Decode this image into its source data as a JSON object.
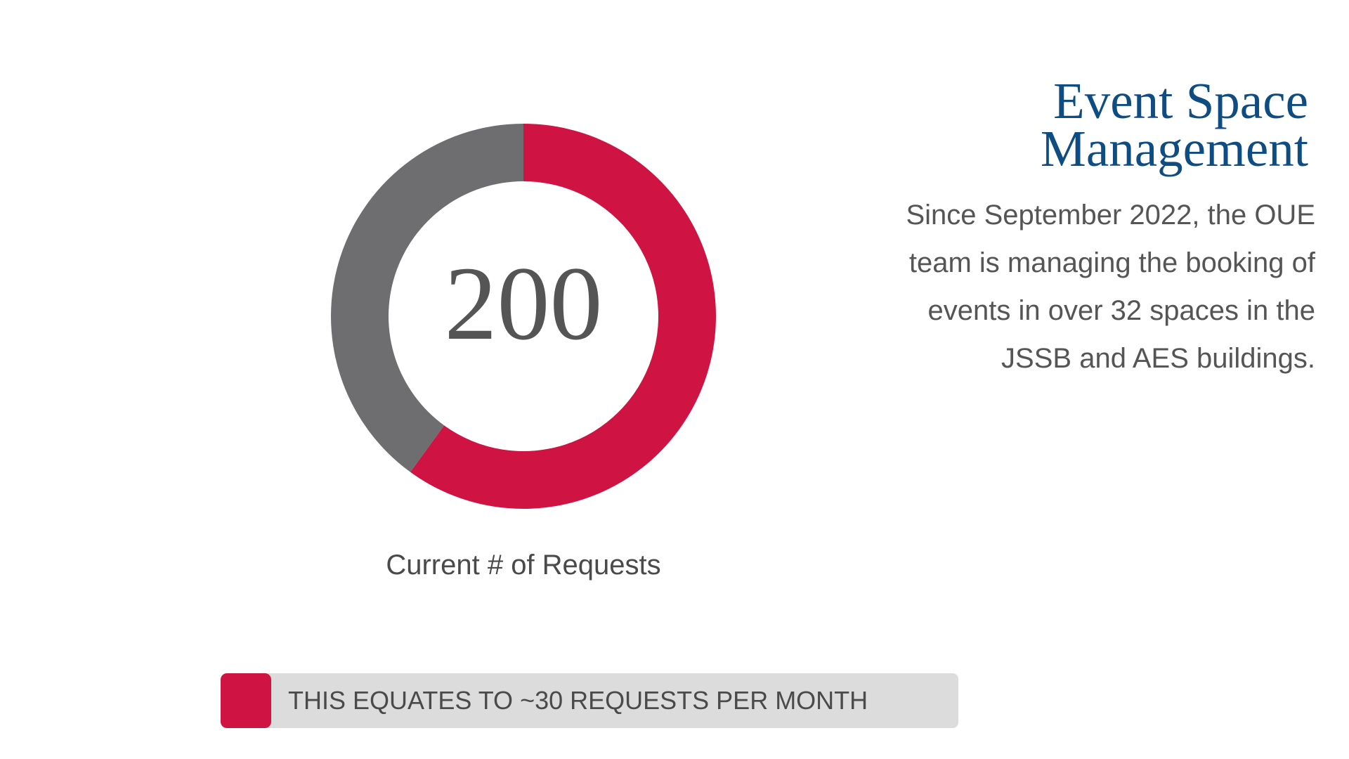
{
  "header": {
    "title_line1": "Event Space",
    "title_line2": "Management"
  },
  "description": {
    "lines": [
      "Since September 2022, the OUE",
      "team is managing the booking of",
      "events in over 32 spaces in the",
      "JSSB and AES buildings."
    ]
  },
  "legend": {
    "text": "THIS EQUATES TO ~30 REQUESTS PER MONTH"
  },
  "chart_data": {
    "type": "pie",
    "title": "",
    "center_value": "200",
    "caption": "Current # of Requests",
    "slices": [
      {
        "value": 60,
        "color": "#cf1443"
      },
      {
        "value": 40,
        "color": "#6e6e70"
      }
    ]
  },
  "colors": {
    "accent": "#cf1443",
    "neutral": "#6e6e70",
    "title": "#0f4c81",
    "text": "#555555",
    "legend_bg": "#dcdcdc"
  }
}
